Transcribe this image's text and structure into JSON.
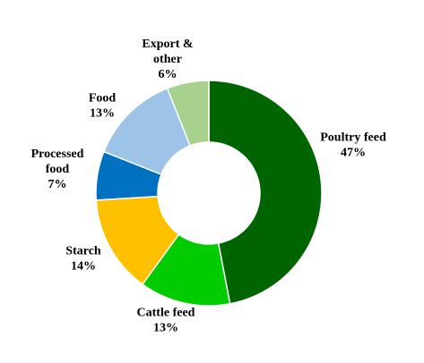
{
  "chart_data": {
    "type": "pie",
    "style": "donut",
    "title": "",
    "legend": "none",
    "slices": [
      {
        "label_lines": [
          "Poultry feed",
          "47%"
        ],
        "value": 47,
        "color": "#006400"
      },
      {
        "label_lines": [
          "Cattle feed",
          "13%"
        ],
        "value": 13,
        "color": "#00CC00"
      },
      {
        "label_lines": [
          "Starch",
          "14%"
        ],
        "value": 14,
        "color": "#FFC000"
      },
      {
        "label_lines": [
          "Processed",
          "food",
          "7%"
        ],
        "value": 7,
        "color": "#0070C0"
      },
      {
        "label_lines": [
          "Food",
          "13%"
        ],
        "value": 13,
        "color": "#9DC3E6"
      },
      {
        "label_lines": [
          "Export &",
          "other",
          "6%"
        ],
        "value": 6,
        "color": "#A9D18E"
      }
    ]
  }
}
